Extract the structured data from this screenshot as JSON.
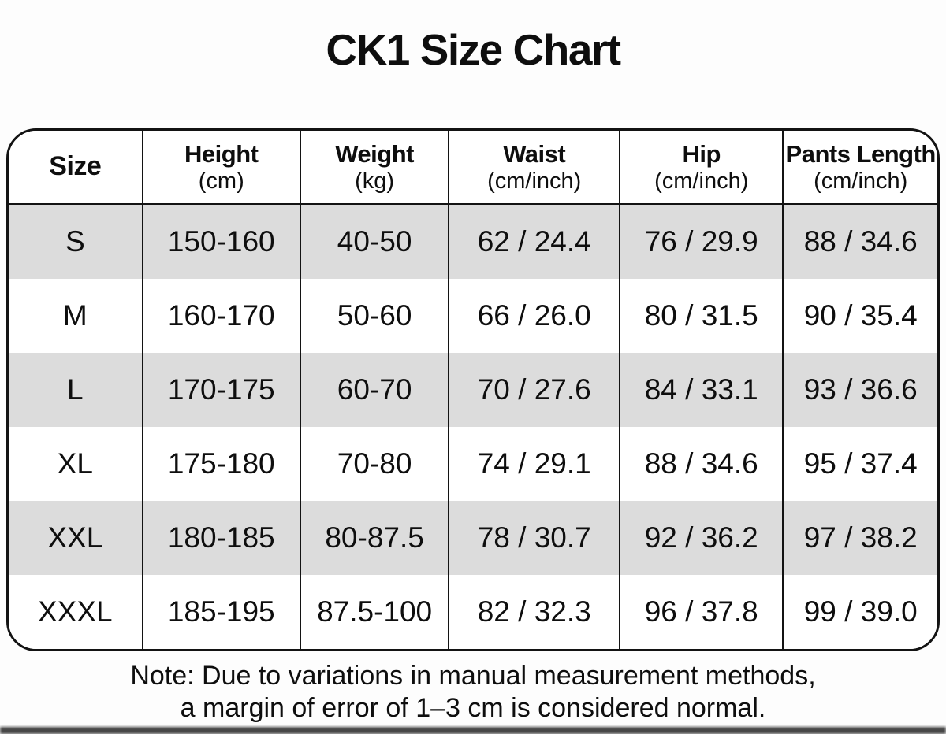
{
  "title": "CK1 Size Chart",
  "table": {
    "columns": [
      {
        "label": "Size",
        "unit": ""
      },
      {
        "label": "Height",
        "unit": "(cm)"
      },
      {
        "label": "Weight",
        "unit": "(kg)"
      },
      {
        "label": "Waist",
        "unit": "(cm/inch)"
      },
      {
        "label": "Hip",
        "unit": "(cm/inch)"
      },
      {
        "label": "Pants Length",
        "unit": "(cm/inch)"
      }
    ],
    "rows": [
      [
        "S",
        "150-160",
        "40-50",
        "62 / 24.4",
        "76 / 29.9",
        "88 / 34.6"
      ],
      [
        "M",
        "160-170",
        "50-60",
        "66 / 26.0",
        "80 / 31.5",
        "90 / 35.4"
      ],
      [
        "L",
        "170-175",
        "60-70",
        "70 / 27.6",
        "84 / 33.1",
        "93 / 36.6"
      ],
      [
        "XL",
        "175-180",
        "70-80",
        "74 / 29.1",
        "88 / 34.6",
        "95 / 37.4"
      ],
      [
        "XXL",
        "180-185",
        "80-87.5",
        "78 / 30.7",
        "92 / 36.2",
        "97 / 38.2"
      ],
      [
        "XXXL",
        "185-195",
        "87.5-100",
        "82 / 32.3",
        "96 / 37.8",
        "99 / 39.0"
      ]
    ]
  },
  "note": {
    "line1": "Note: Due to variations in manual measurement methods,",
    "line2": "a margin of error of 1–3 cm is considered normal."
  },
  "colors": {
    "stripe_gray": "#dcdcdc",
    "border_black": "#131313",
    "background": "#fdfdfd"
  }
}
